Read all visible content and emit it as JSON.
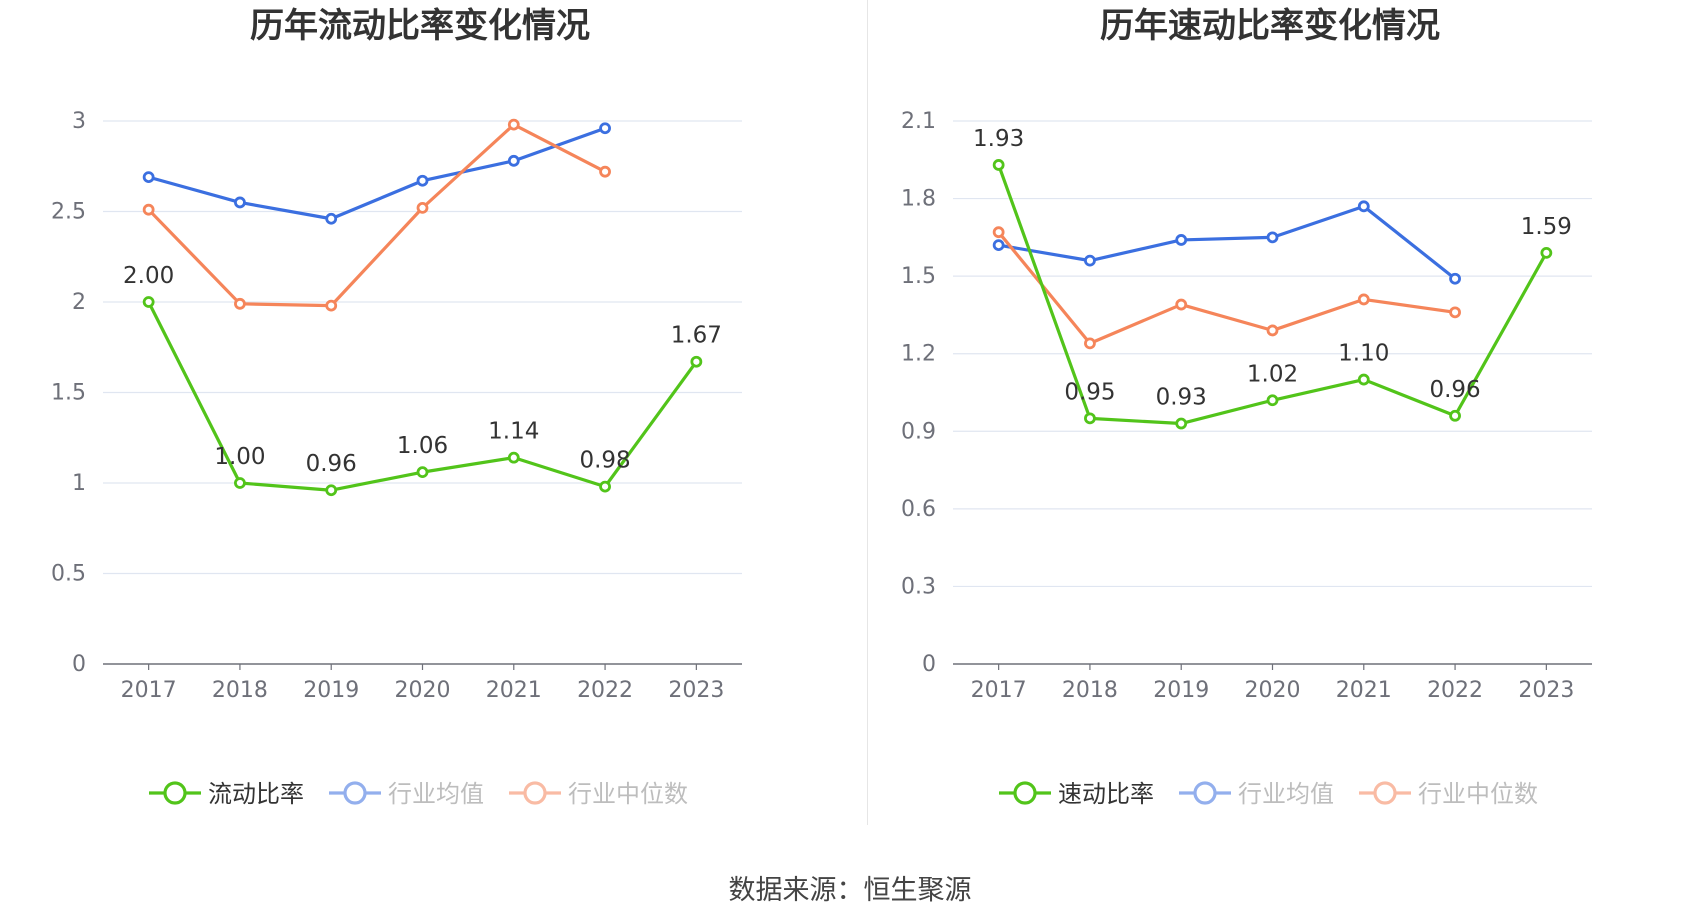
{
  "source": "数据来源：恒生聚源",
  "colors": {
    "company": "#52c41a",
    "average": "#3b6fe0",
    "median": "#f5855a",
    "grid": "#e0e6f1",
    "axis": "#6e7079"
  },
  "chart_data": [
    {
      "type": "line",
      "title": "历年流动比率变化情况",
      "categories": [
        "2017",
        "2018",
        "2019",
        "2020",
        "2021",
        "2022",
        "2023"
      ],
      "y_ticks": [
        "0",
        "0.5",
        "1",
        "1.5",
        "2",
        "2.5",
        "3"
      ],
      "ylim": [
        0,
        3
      ],
      "series": [
        {
          "name": "流动比率",
          "key": "company",
          "values": [
            2.0,
            1.0,
            0.96,
            1.06,
            1.14,
            0.98,
            1.67
          ],
          "labels": [
            "2.00",
            "1.00",
            "0.96",
            "1.06",
            "1.14",
            "0.98",
            "1.67"
          ]
        },
        {
          "name": "行业均值",
          "key": "average",
          "values": [
            2.69,
            2.55,
            2.46,
            2.67,
            2.78,
            2.96,
            null
          ]
        },
        {
          "name": "行业中位数",
          "key": "median",
          "values": [
            2.51,
            1.99,
            1.98,
            2.52,
            2.98,
            2.72,
            null
          ]
        }
      ],
      "legend": [
        "流动比率",
        "行业均值",
        "行业中位数"
      ]
    },
    {
      "type": "line",
      "title": "历年速动比率变化情况",
      "categories": [
        "2017",
        "2018",
        "2019",
        "2020",
        "2021",
        "2022",
        "2023"
      ],
      "y_ticks": [
        "0",
        "0.3",
        "0.6",
        "0.9",
        "1.2",
        "1.5",
        "1.8",
        "2.1"
      ],
      "ylim": [
        0,
        2.1
      ],
      "series": [
        {
          "name": "速动比率",
          "key": "company",
          "values": [
            1.93,
            0.95,
            0.93,
            1.02,
            1.1,
            0.96,
            1.59
          ],
          "labels": [
            "1.93",
            "0.95",
            "0.93",
            "1.02",
            "1.10",
            "0.96",
            "1.59"
          ]
        },
        {
          "name": "行业均值",
          "key": "average",
          "values": [
            1.62,
            1.56,
            1.64,
            1.65,
            1.77,
            1.49,
            null
          ]
        },
        {
          "name": "行业中位数",
          "key": "median",
          "values": [
            1.67,
            1.24,
            1.39,
            1.29,
            1.41,
            1.36,
            null
          ]
        }
      ],
      "legend": [
        "速动比率",
        "行业均值",
        "行业中位数"
      ]
    }
  ]
}
